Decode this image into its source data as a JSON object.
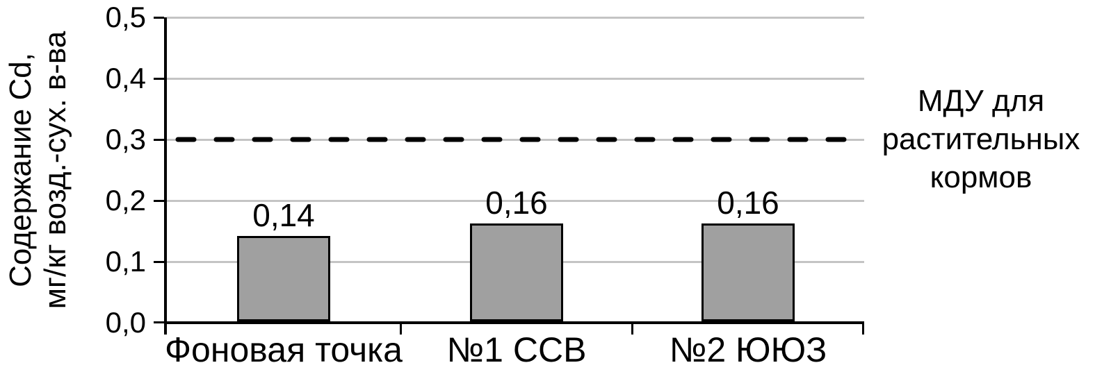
{
  "chart_data": {
    "type": "bar",
    "title": "",
    "categories": [
      "Фоновая точка",
      "№1 ССВ",
      "№2 ЮЮЗ"
    ],
    "values": [
      0.14,
      0.16,
      0.16
    ],
    "value_labels": [
      "0,14",
      "0,16",
      "0,16"
    ],
    "ylabel": "Содержание Cd, мг/кг возд.-сух. в-ва",
    "ylabel_lines": [
      "Содержание Cd,",
      "мг/кг возд.-сух. в-ва"
    ],
    "xlabel": "",
    "y_ticks": [
      "0,5",
      "0,4",
      "0,3",
      "0,2",
      "0,1",
      "0,0"
    ],
    "ylim": [
      0,
      0.5
    ],
    "grid": true,
    "legend_position": "none",
    "reference_line": {
      "value": 0.3,
      "style": "dashed",
      "color": "#000000",
      "label": "МДУ для\nрастительных\nкормов"
    },
    "bar_color": "#A0A0A0",
    "bar_border_color": "#000000",
    "gridline_color": "#C4C4C4",
    "axis_color": "#000000",
    "text_color": "#000000"
  }
}
